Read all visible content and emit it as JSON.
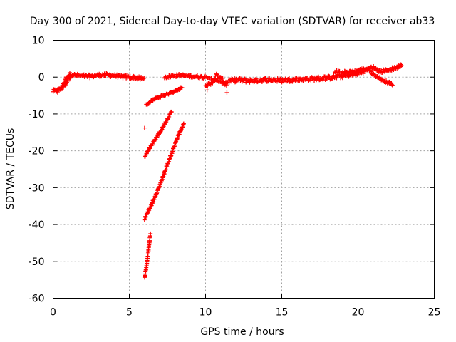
{
  "chart_data": {
    "type": "scatter",
    "title": "Day 300 of 2021, Sidereal Day-to-day VTEC variation (SDTVAR) for receiver ab33",
    "xlabel": "GPS time / hours",
    "ylabel": "SDTVAR / TECUs",
    "xlim": [
      0,
      25
    ],
    "ylim": [
      -60,
      10
    ],
    "xticks": [
      0,
      5,
      10,
      15,
      20,
      25
    ],
    "yticks": [
      10,
      0,
      -10,
      -20,
      -30,
      -40,
      -50,
      -60
    ],
    "grid": true,
    "legend": "none",
    "marker": "+",
    "color": "#ff0000",
    "segments": [
      {
        "kind": "curve",
        "pts": [
          [
            0.0,
            -3.8
          ],
          [
            0.3,
            -3.6
          ],
          [
            0.5,
            -3.0
          ],
          [
            0.7,
            -1.5
          ],
          [
            0.9,
            0.0
          ],
          [
            1.1,
            0.8
          ],
          [
            1.4,
            0.5
          ],
          [
            2.0,
            0.3
          ],
          [
            2.5,
            0.2
          ],
          [
            3.0,
            0.5
          ],
          [
            3.5,
            0.6
          ],
          [
            4.0,
            0.4
          ],
          [
            4.5,
            0.1
          ],
          [
            5.0,
            0.0
          ],
          [
            5.5,
            -0.2
          ],
          [
            6.0,
            -0.5
          ]
        ],
        "step": 0.04,
        "jitter": 0.45
      },
      {
        "kind": "curve",
        "pts": [
          [
            0.5,
            -3.2
          ],
          [
            0.8,
            -2.0
          ],
          [
            1.0,
            -0.5
          ],
          [
            1.2,
            0.5
          ]
        ],
        "step": 0.03,
        "jitter": 0.4
      },
      {
        "kind": "curve",
        "pts": [
          [
            7.3,
            0.0
          ],
          [
            7.8,
            0.3
          ],
          [
            8.3,
            0.5
          ],
          [
            8.8,
            0.3
          ],
          [
            9.3,
            0.2
          ],
          [
            9.8,
            0.0
          ],
          [
            10.0,
            -0.2
          ]
        ],
        "step": 0.04,
        "jitter": 0.35
      },
      {
        "kind": "curve",
        "pts": [
          [
            10.0,
            -1.8
          ],
          [
            10.3,
            -2.2
          ],
          [
            10.5,
            -1.0
          ],
          [
            10.7,
            0.5
          ],
          [
            11.0,
            -0.5
          ],
          [
            11.3,
            -1.5
          ],
          [
            11.6,
            -1.0
          ],
          [
            12.0,
            -0.8
          ],
          [
            13.0,
            -1.0
          ],
          [
            14.0,
            -0.7
          ],
          [
            15.0,
            -0.9
          ],
          [
            16.0,
            -0.6
          ],
          [
            17.0,
            -0.5
          ],
          [
            18.0,
            -0.2
          ],
          [
            19.0,
            0.3
          ],
          [
            19.5,
            0.7
          ],
          [
            20.0,
            1.0
          ],
          [
            20.5,
            1.8
          ],
          [
            21.0,
            2.5
          ]
        ],
        "step": 0.04,
        "jitter": 0.55
      },
      {
        "kind": "curve",
        "pts": [
          [
            18.5,
            1.5
          ],
          [
            19.0,
            1.3
          ],
          [
            19.5,
            1.5
          ],
          [
            20.0,
            1.8
          ],
          [
            20.5,
            2.2
          ],
          [
            20.8,
            2.5
          ]
        ],
        "step": 0.05,
        "jitter": 0.35
      },
      {
        "kind": "curve",
        "pts": [
          [
            20.8,
            1.5
          ],
          [
            21.2,
            0.2
          ],
          [
            21.6,
            -0.8
          ],
          [
            22.0,
            -1.5
          ],
          [
            22.3,
            -2.0
          ]
        ],
        "step": 0.04,
        "jitter": 0.3
      },
      {
        "kind": "curve",
        "pts": [
          [
            21.0,
            2.6
          ],
          [
            21.5,
            1.5
          ],
          [
            22.0,
            2.0
          ],
          [
            22.5,
            2.5
          ],
          [
            22.9,
            3.2
          ]
        ],
        "step": 0.04,
        "jitter": 0.4
      },
      {
        "kind": "curve",
        "pts": [
          [
            10.0,
            0.3
          ],
          [
            10.5,
            -0.6
          ],
          [
            11.0,
            -1.2
          ],
          [
            11.4,
            -2.2
          ]
        ],
        "step": 0.06,
        "jitter": 0.3
      },
      {
        "kind": "curve",
        "pts": [
          [
            6.1,
            -7.5
          ],
          [
            6.5,
            -6.3
          ],
          [
            7.0,
            -5.3
          ],
          [
            7.5,
            -4.6
          ],
          [
            8.0,
            -3.9
          ],
          [
            8.5,
            -2.7
          ]
        ],
        "step": 0.04,
        "jitter": 0.25
      },
      {
        "kind": "curve",
        "pts": [
          [
            6.0,
            -21.5
          ],
          [
            6.5,
            -18.2
          ],
          [
            7.0,
            -15.0
          ],
          [
            7.5,
            -11.5
          ],
          [
            7.8,
            -9.0
          ]
        ],
        "step": 0.03,
        "jitter": 0.25
      },
      {
        "kind": "curve",
        "pts": [
          [
            6.0,
            -38.5
          ],
          [
            6.3,
            -36.0
          ],
          [
            6.8,
            -31.5
          ],
          [
            7.3,
            -26.0
          ],
          [
            7.8,
            -20.5
          ],
          [
            8.2,
            -16.0
          ],
          [
            8.6,
            -12.5
          ]
        ],
        "step": 0.025,
        "jitter": 0.3
      },
      {
        "kind": "curve",
        "pts": [
          [
            6.0,
            -54.5
          ],
          [
            6.1,
            -52.0
          ],
          [
            6.2,
            -49.0
          ],
          [
            6.3,
            -45.5
          ],
          [
            6.4,
            -42.0
          ]
        ],
        "step": 0.012,
        "jitter": 0.2
      },
      {
        "kind": "points",
        "pts": [
          [
            6.0,
            -13.8
          ],
          [
            11.4,
            -4.2
          ],
          [
            10.1,
            -3.5
          ],
          [
            0.3,
            -4.2
          ]
        ]
      }
    ]
  }
}
